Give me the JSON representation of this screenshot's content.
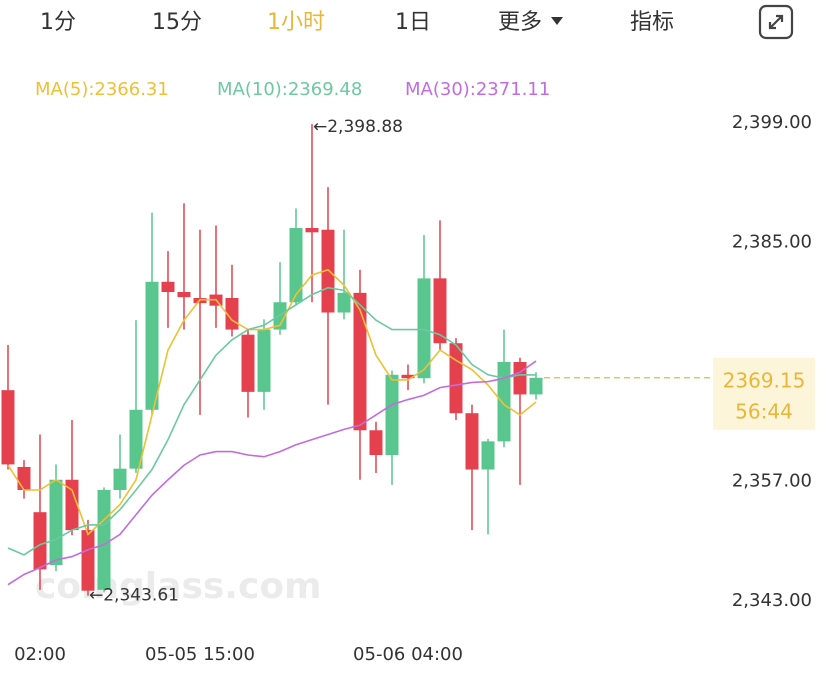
{
  "tabs": [
    "1分",
    "15分",
    "1小时",
    "1日",
    "更多",
    "指标"
  ],
  "active_tab": 2,
  "chart_data": {
    "type": "candlestick",
    "watermark": "coinglass.com",
    "categories": [
      null,
      null,
      "02:00",
      null,
      null,
      null,
      null,
      null,
      null,
      null,
      null,
      null,
      "05-05 15:00",
      null,
      null,
      null,
      null,
      null,
      null,
      null,
      null,
      null,
      null,
      null,
      null,
      "05-06 04:00",
      null,
      null,
      null,
      null,
      null,
      null,
      null,
      null
    ],
    "open": [
      2367.7,
      2358.7,
      2353.4,
      2347.2,
      2357.2,
      2351.3,
      2344.3,
      2356,
      2358.5,
      2365.4,
      2380.4,
      2379.2,
      2378.5,
      2378.9,
      2378.5,
      2374.2,
      2367.5,
      2374.8,
      2378,
      2386.7,
      2386.5,
      2376.8,
      2379.1,
      2363,
      2360.1,
      2369.5,
      2369.1,
      2380.8,
      2373.2,
      2365,
      2358.4,
      2361.7,
      2371,
      2367.2
    ],
    "high": [
      2373,
      2359.5,
      2362.5,
      2359,
      2364.2,
      2352.5,
      2356.3,
      2362.5,
      2375.9,
      2388.5,
      2384,
      2389.6,
      2386.5,
      2387,
      2382.4,
      2374.8,
      2376,
      2382.7,
      2389,
      2398.88,
      2391.5,
      2386.5,
      2381.8,
      2364,
      2370,
      2370.7,
      2385.9,
      2387.6,
      2373.8,
      2366,
      2362,
      2374.8,
      2371.5,
      2369.8
    ],
    "low": [
      2358.4,
      2355,
      2344.3,
      2346.5,
      2350.7,
      2343.61,
      2344,
      2355,
      2358,
      2364.8,
      2375,
      2374.8,
      2364.8,
      2375,
      2374,
      2364.5,
      2365.4,
      2374.2,
      2377.7,
      2378,
      2366,
      2376,
      2357.2,
      2358,
      2356.6,
      2367.7,
      2368.5,
      2372.4,
      2364.2,
      2351.3,
      2350.8,
      2361,
      2356.6,
      2366.6
    ],
    "close": [
      2359,
      2356,
      2346.7,
      2357.2,
      2351.3,
      2344.2,
      2356,
      2358.5,
      2365.4,
      2380.4,
      2379.2,
      2378.6,
      2377.9,
      2377.6,
      2374.8,
      2367.5,
      2374.8,
      2378,
      2386.7,
      2386.2,
      2376.8,
      2379.1,
      2363,
      2360.1,
      2369.5,
      2369.1,
      2380.8,
      2373.2,
      2365,
      2358.4,
      2361.7,
      2371,
      2367.2,
      2369.15
    ],
    "up_color": "#58c68d",
    "down_color": "#e4404e",
    "series": [
      {
        "name": "MA(5):2366.31",
        "color": "#efbf34",
        "values": [
          2358.9,
          2356.0,
          2356.0,
          2357.2,
          2356.0,
          2350.8,
          2352.5,
          2354.3,
          2357.2,
          2364.8,
          2372.4,
          2375.9,
          2378.3,
          2378.3,
          2375.9,
          2374.8,
          2374.8,
          2375.3,
          2378.9,
          2381.2,
          2381.8,
          2380.0,
          2377.1,
          2371.8,
          2368.9,
          2368.9,
          2370.1,
          2372.4,
          2371.2,
          2370.1,
          2368.3,
          2366.0,
          2364.8,
          2366.31
        ]
      },
      {
        "name": "MA(10):2369.48",
        "color": "#6cc9a0",
        "values": [
          2349.2,
          2348.4,
          2349.6,
          2350.2,
          2351.3,
          2351.9,
          2351.9,
          2353.7,
          2356.0,
          2358.4,
          2361.9,
          2366.0,
          2368.9,
          2371.8,
          2373.6,
          2374.8,
          2375.3,
          2376.5,
          2377.7,
          2378.9,
          2379.7,
          2379.4,
          2377.7,
          2375.9,
          2374.8,
          2374.8,
          2374.8,
          2374.2,
          2373.0,
          2370.7,
          2369.5,
          2369.1,
          2369.5,
          2369.48
        ]
      },
      {
        "name": "MA(30):2371.11",
        "color": "#c36ce0",
        "values": [
          2344.9,
          2346.1,
          2346.9,
          2347.8,
          2348.2,
          2349.0,
          2349.6,
          2350.8,
          2353.1,
          2355.4,
          2357.2,
          2358.9,
          2360.1,
          2360.5,
          2360.5,
          2360.1,
          2359.9,
          2360.5,
          2361.3,
          2361.9,
          2362.5,
          2363.1,
          2363.6,
          2364.8,
          2366.0,
          2366.6,
          2367.1,
          2368.0,
          2368.3,
          2368.6,
          2368.7,
          2369.1,
          2369.8,
          2371.11
        ]
      }
    ],
    "ylim": [
      2341,
      2401
    ],
    "yticks": [
      {
        "value": 2399,
        "label": "2,399.00"
      },
      {
        "value": 2385,
        "label": "2,385.00"
      },
      {
        "value": 2357,
        "label": "2,357.00"
      },
      {
        "value": 2343,
        "label": "2,343.00"
      }
    ],
    "annotations": [
      {
        "value": 2398.88,
        "label": "←2,398.88"
      },
      {
        "value": 2343.61,
        "label": "←2,343.61"
      }
    ],
    "last_price": 2369.15,
    "countdown": "56:44",
    "last_color": "#e8b73a"
  }
}
